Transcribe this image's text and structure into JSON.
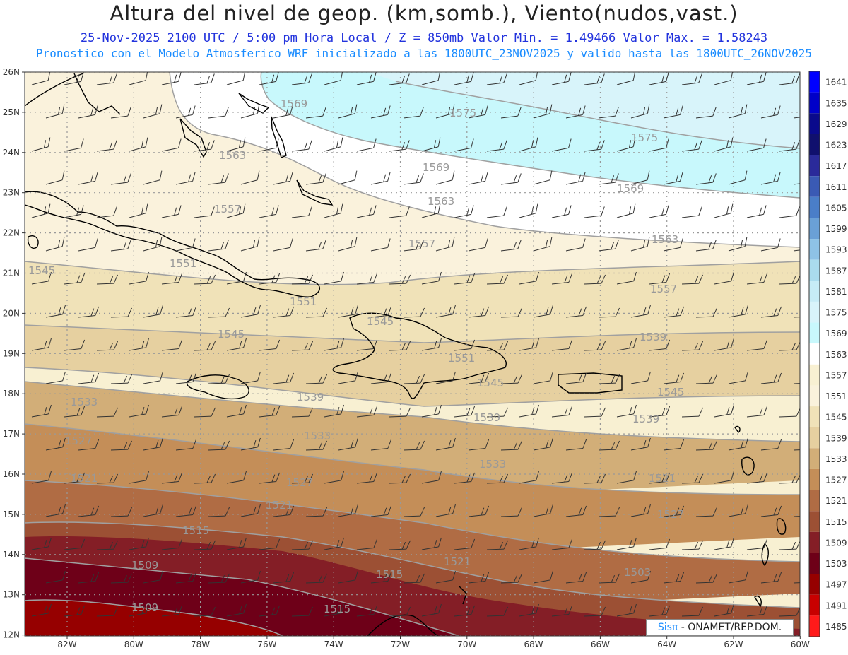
{
  "header": {
    "title": "Altura del nivel de geop. (km,somb.), Viento(nudos,vast.)",
    "subtitle_valid": "25-Nov-2025  2100 UTC / 5:00 pm Hora Local / Z = 850mb    Valor Min. = 1.49466  Valor Max. = 1.58243",
    "subtitle_model": "Pronostico con el Modelo Atmosferico WRF inicializado a las 1800UTC_23NOV2025 y valido hasta las  1800UTC_26NOV2025"
  },
  "credit": {
    "logo": "Sisπ",
    "text": " - ONAMET/REP.DOM."
  },
  "axes": {
    "lon_labels": [
      "82W",
      "80W",
      "78W",
      "76W",
      "74W",
      "72W",
      "70W",
      "68W",
      "66W",
      "64W",
      "62W",
      "60W"
    ],
    "lat_labels": [
      "26N",
      "25N",
      "24N",
      "23N",
      "22N",
      "21N",
      "20N",
      "19N",
      "18N",
      "17N",
      "16N",
      "15N",
      "14N",
      "13N",
      "12N"
    ]
  },
  "colorbar": {
    "labels": [
      "1641",
      "1635",
      "1629",
      "1623",
      "1617",
      "1611",
      "1605",
      "1599",
      "1593",
      "1587",
      "1581",
      "1575",
      "1569",
      "1563",
      "1557",
      "1551",
      "1545",
      "1539",
      "1533",
      "1527",
      "1521",
      "1515",
      "1509",
      "1503",
      "1497",
      "1491",
      "1485"
    ],
    "colors": [
      "#0000ff",
      "#0000c8",
      "#0a0a8c",
      "#10106e",
      "#2a2a9a",
      "#3a5ab4",
      "#4a7ec8",
      "#6aa0d6",
      "#8ec2e6",
      "#aadcee",
      "#c6ecf6",
      "#d8f4fa",
      "#c8f8fc",
      "#ffffff",
      "#f8f0d2",
      "#faf2dc",
      "#f0e2b8",
      "#e6d0a0",
      "#d2ae78",
      "#c48e58",
      "#b06c44",
      "#9c5034",
      "#841e26",
      "#6e0018",
      "#960000",
      "#c80000",
      "#ff1a1a"
    ]
  },
  "contour_labels": [
    "1569",
    "1575",
    "1575",
    "1563",
    "1569",
    "1569",
    "1557",
    "1563",
    "1563",
    "1545",
    "1551",
    "1557",
    "1557",
    "1551",
    "1545",
    "1545",
    "1539",
    "1551",
    "1545",
    "1545",
    "1533",
    "1539",
    "1539",
    "1539",
    "1527",
    "1533",
    "1533",
    "1521",
    "1527",
    "1521",
    "1527",
    "1515",
    "1521",
    "1509",
    "1515",
    "1521",
    "1503",
    "1509",
    "1515"
  ]
}
